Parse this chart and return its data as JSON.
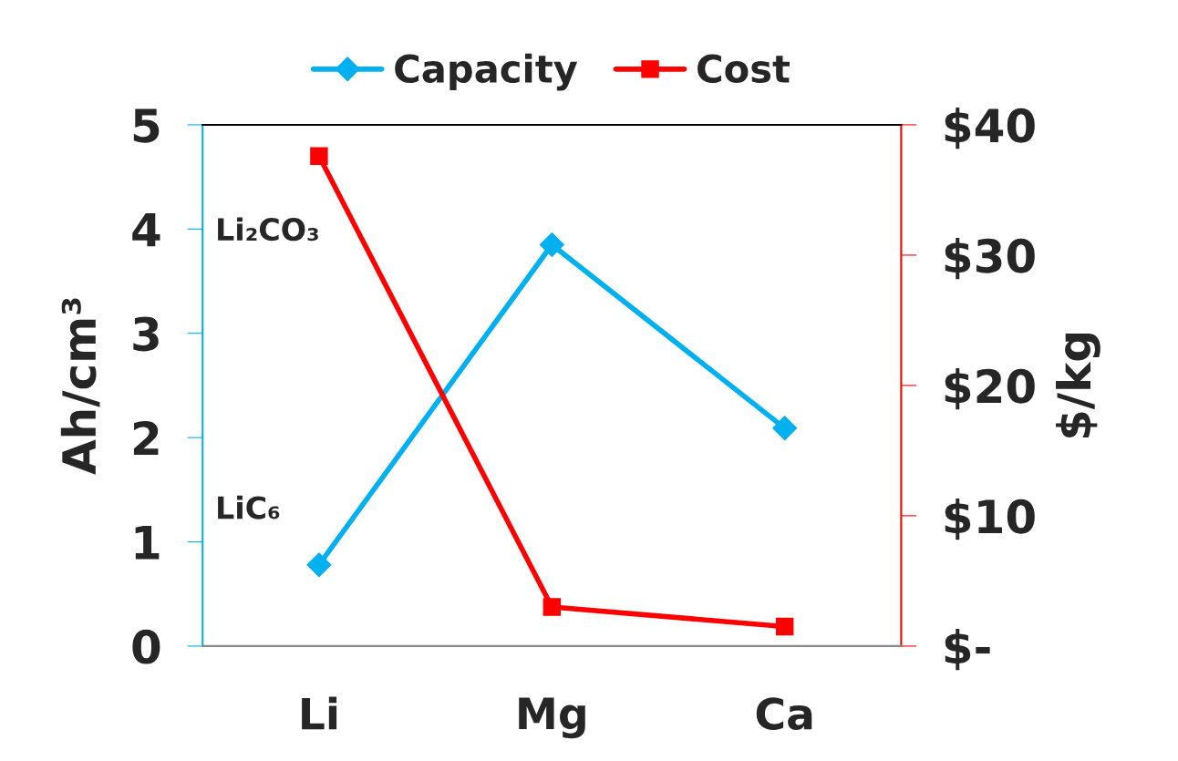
{
  "chart_data": {
    "type": "line",
    "categories": [
      "Li",
      "Mg",
      "Ca"
    ],
    "ylabel": "Ah/cm³",
    "y2label": "$/kg",
    "ylim": [
      0,
      5
    ],
    "yticks": [
      0,
      1,
      2,
      3,
      4,
      5
    ],
    "y2lim": [
      0,
      40
    ],
    "y2ticks": [
      {
        "value": 0,
        "label": "$-"
      },
      {
        "value": 10,
        "label": "$10"
      },
      {
        "value": 20,
        "label": "$20"
      },
      {
        "value": 30,
        "label": "$30"
      },
      {
        "value": 40,
        "label": "$40"
      }
    ],
    "series": [
      {
        "name": "Capacity",
        "color": "#00b0f0",
        "marker": "diamond",
        "values": [
          0.78,
          3.85,
          2.09
        ]
      },
      {
        "name": "Cost",
        "color": "#ff0000",
        "marker": "square",
        "axis": "y2",
        "values": [
          37.6,
          3.0,
          1.5
        ]
      }
    ],
    "annotations": [
      {
        "text": "Li₂CO₃",
        "x": "Li",
        "y": 4.7
      },
      {
        "text": "LiC₆",
        "x": "Li",
        "y": 0.78
      }
    ],
    "legend": "top",
    "grid": false,
    "line_style": "solid"
  }
}
